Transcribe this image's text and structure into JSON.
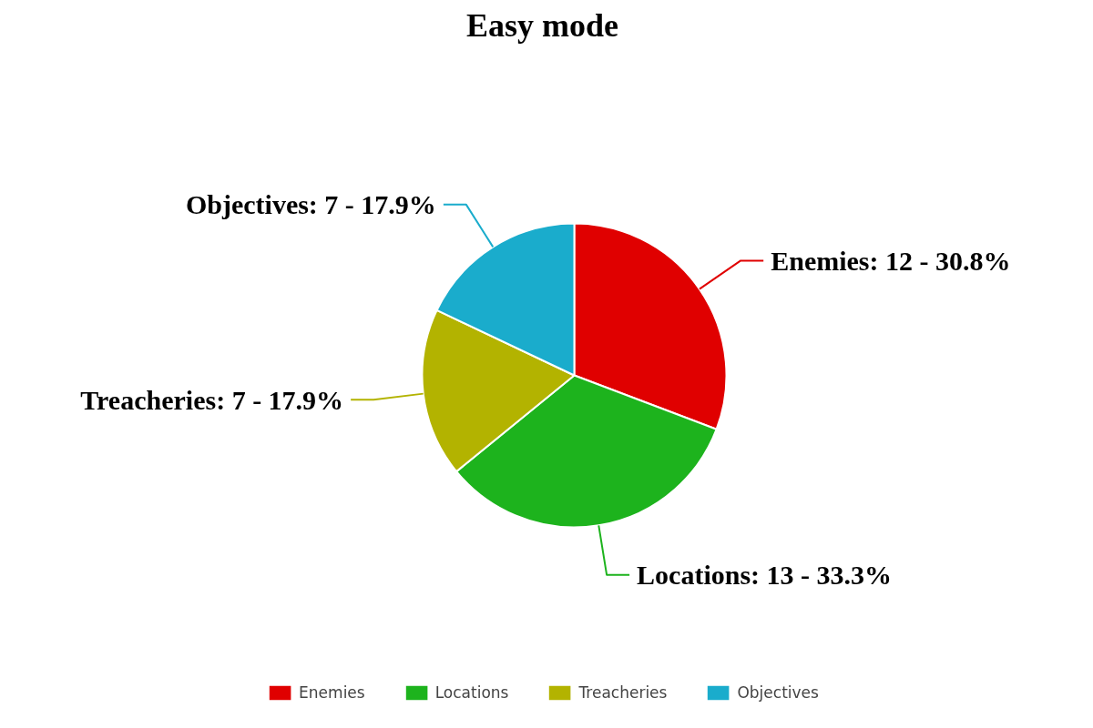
{
  "chart_data": {
    "type": "pie",
    "title": "Easy mode",
    "categories": [
      "Enemies",
      "Locations",
      "Treacheries",
      "Objectives"
    ],
    "values": [
      12,
      13,
      7,
      7
    ],
    "colors": [
      "#e00000",
      "#1db31d",
      "#b3b300",
      "#1aaccc"
    ],
    "value_labels": [
      "Enemies: 12 - 30.8%",
      "Locations: 13 - 33.3%",
      "Treacheries: 7 - 17.9%",
      "Objectives: 7 - 17.9%"
    ],
    "legend": "bottom"
  }
}
